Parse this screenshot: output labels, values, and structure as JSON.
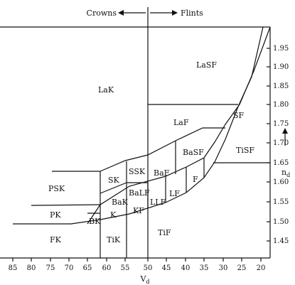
{
  "header": {
    "left_label": "Crowns",
    "right_label": "Flints"
  },
  "axes": {
    "x_label": "V",
    "x_label_sub": "d",
    "y_label": "n",
    "y_label_sub": "d",
    "x_ticks": [
      "85",
      "80",
      "75",
      "70",
      "65",
      "60",
      "55",
      "50",
      "45",
      "40",
      "35",
      "30",
      "25",
      "20"
    ],
    "y_ticks": [
      "1.95",
      "1.90",
      "1.85",
      "1.80",
      "1.75",
      "1.70",
      "1.65",
      "1.60",
      "1.55",
      "1.50",
      "1.45"
    ]
  },
  "regions": [
    "LaK",
    "LaSF",
    "LaF",
    "SF",
    "BaSF",
    "TiSF",
    "SSK",
    "SK",
    "BaF",
    "BaLF",
    "PSK",
    "BaK",
    "F",
    "LF",
    "LLF",
    "KF",
    "PK",
    "K",
    "BK",
    "FK",
    "TiK",
    "TiF"
  ]
}
